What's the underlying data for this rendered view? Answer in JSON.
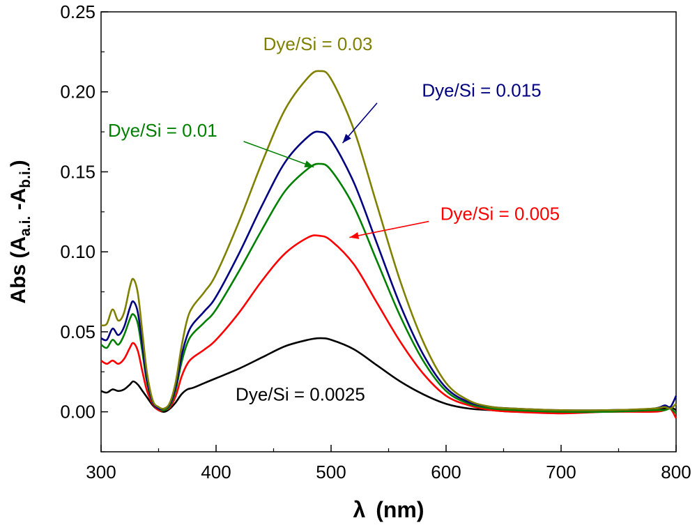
{
  "chart_data": {
    "type": "line",
    "xlabel_main": "λ",
    "xlabel_unit": "(nm)",
    "ylabel_main": "Abs (A",
    "ylabel_sub1": "a.i.",
    "ylabel_mid": " -A",
    "ylabel_sub2": "b.i.",
    "ylabel_end": ")",
    "xlim": [
      300,
      800
    ],
    "ylim": [
      -0.025,
      0.25
    ],
    "xticks": [
      "300",
      "400",
      "500",
      "600",
      "700",
      "800"
    ],
    "yticks": [
      "0.00",
      "0.05",
      "0.10",
      "0.15",
      "0.20",
      "0.25"
    ],
    "grid": false,
    "series": [
      {
        "name": "Dye/Si = 0.0025",
        "color": "#000000",
        "x": [
          300,
          305,
          310,
          315,
          320,
          325,
          328,
          332,
          336,
          340,
          345,
          350,
          355,
          360,
          365,
          370,
          375,
          380,
          390,
          400,
          420,
          440,
          460,
          480,
          490,
          500,
          520,
          540,
          560,
          580,
          600,
          620,
          640,
          660,
          700,
          740,
          780,
          790,
          795,
          800
        ],
        "y": [
          0.013,
          0.012,
          0.014,
          0.013,
          0.014,
          0.017,
          0.019,
          0.017,
          0.013,
          0.009,
          0.004,
          0.001,
          0.0,
          0.002,
          0.006,
          0.011,
          0.014,
          0.015,
          0.018,
          0.021,
          0.027,
          0.034,
          0.041,
          0.045,
          0.046,
          0.045,
          0.039,
          0.029,
          0.019,
          0.011,
          0.005,
          0.002,
          0.001,
          0.0,
          0.0,
          0.0,
          0.001,
          0.002,
          0.003,
          0.001
        ]
      },
      {
        "name": "Dye/Si = 0.005",
        "color": "#ff0000",
        "x": [
          300,
          305,
          310,
          315,
          320,
          325,
          328,
          332,
          336,
          340,
          345,
          350,
          355,
          360,
          365,
          370,
          375,
          380,
          390,
          400,
          420,
          440,
          460,
          480,
          490,
          500,
          520,
          540,
          560,
          580,
          600,
          620,
          640,
          660,
          700,
          740,
          780,
          790,
          795,
          800
        ],
        "y": [
          0.032,
          0.03,
          0.032,
          0.03,
          0.033,
          0.04,
          0.043,
          0.038,
          0.025,
          0.013,
          0.005,
          0.001,
          0.001,
          0.003,
          0.01,
          0.022,
          0.03,
          0.034,
          0.039,
          0.045,
          0.062,
          0.082,
          0.099,
          0.109,
          0.11,
          0.107,
          0.092,
          0.068,
          0.044,
          0.024,
          0.01,
          0.004,
          0.001,
          0.0,
          -0.001,
          0.0,
          0.0,
          0.001,
          0.002,
          -0.004
        ]
      },
      {
        "name": "Dye/Si = 0.01",
        "color": "#008000",
        "x": [
          300,
          305,
          310,
          315,
          320,
          325,
          328,
          332,
          336,
          340,
          345,
          350,
          355,
          360,
          365,
          370,
          375,
          380,
          390,
          400,
          420,
          440,
          460,
          480,
          490,
          500,
          520,
          540,
          560,
          580,
          600,
          620,
          640,
          660,
          700,
          740,
          780,
          790,
          795,
          800
        ],
        "y": [
          0.042,
          0.04,
          0.045,
          0.042,
          0.048,
          0.058,
          0.061,
          0.055,
          0.037,
          0.018,
          0.006,
          0.002,
          0.001,
          0.004,
          0.014,
          0.031,
          0.043,
          0.049,
          0.056,
          0.064,
          0.088,
          0.114,
          0.138,
          0.152,
          0.155,
          0.151,
          0.128,
          0.094,
          0.06,
          0.032,
          0.013,
          0.005,
          0.002,
          0.001,
          0.0,
          0.0,
          0.001,
          0.001,
          0.002,
          -0.001
        ]
      },
      {
        "name": "Dye/Si = 0.015",
        "color": "#000080",
        "x": [
          300,
          305,
          310,
          315,
          320,
          325,
          328,
          332,
          336,
          340,
          345,
          350,
          355,
          360,
          365,
          370,
          375,
          380,
          390,
          400,
          420,
          440,
          460,
          480,
          490,
          500,
          520,
          540,
          560,
          580,
          600,
          620,
          640,
          660,
          700,
          740,
          780,
          790,
          795,
          800
        ],
        "y": [
          0.046,
          0.045,
          0.052,
          0.048,
          0.053,
          0.065,
          0.069,
          0.062,
          0.041,
          0.02,
          0.006,
          0.002,
          0.002,
          0.005,
          0.016,
          0.035,
          0.048,
          0.055,
          0.063,
          0.072,
          0.099,
          0.129,
          0.156,
          0.172,
          0.175,
          0.17,
          0.143,
          0.105,
          0.067,
          0.036,
          0.015,
          0.006,
          0.003,
          0.002,
          0.001,
          0.001,
          0.002,
          0.004,
          0.003,
          0.01
        ]
      },
      {
        "name": "Dye/Si = 0.03",
        "color": "#808000",
        "x": [
          300,
          305,
          310,
          315,
          320,
          325,
          328,
          332,
          336,
          340,
          345,
          350,
          355,
          360,
          365,
          370,
          375,
          380,
          390,
          400,
          420,
          440,
          460,
          480,
          490,
          500,
          520,
          540,
          560,
          580,
          600,
          620,
          640,
          660,
          700,
          740,
          780,
          790,
          795,
          800
        ],
        "y": [
          0.054,
          0.055,
          0.064,
          0.057,
          0.062,
          0.078,
          0.083,
          0.074,
          0.049,
          0.024,
          0.007,
          0.003,
          0.002,
          0.006,
          0.019,
          0.041,
          0.058,
          0.066,
          0.075,
          0.086,
          0.119,
          0.156,
          0.189,
          0.209,
          0.213,
          0.208,
          0.176,
          0.129,
          0.082,
          0.044,
          0.018,
          0.007,
          0.003,
          0.002,
          0.001,
          0.001,
          0.002,
          0.003,
          0.002,
          0.005
        ]
      }
    ],
    "annotations": [
      {
        "text": "Dye/Si = 0.03",
        "color": "#808000",
        "x": 441,
        "y": 0.226,
        "arrow": null
      },
      {
        "text": "Dye/Si = 0.015",
        "color": "#000080",
        "x": 579,
        "y": 0.197,
        "arrow": [
          540,
          0.193,
          510,
          0.168
        ]
      },
      {
        "text": "Dye/Si = 0.01",
        "color": "#008000",
        "x": 306,
        "y": 0.172,
        "arrow": [
          424,
          0.169,
          485,
          0.153
        ]
      },
      {
        "text": "Dye/Si = 0.005",
        "color": "#ff0000",
        "x": 595,
        "y": 0.12,
        "arrow": [
          585,
          0.119,
          516,
          0.109
        ]
      },
      {
        "text": "Dye/Si = 0.0025",
        "color": "#000000",
        "x": 417,
        "y": 0.007,
        "arrow": null
      }
    ]
  }
}
